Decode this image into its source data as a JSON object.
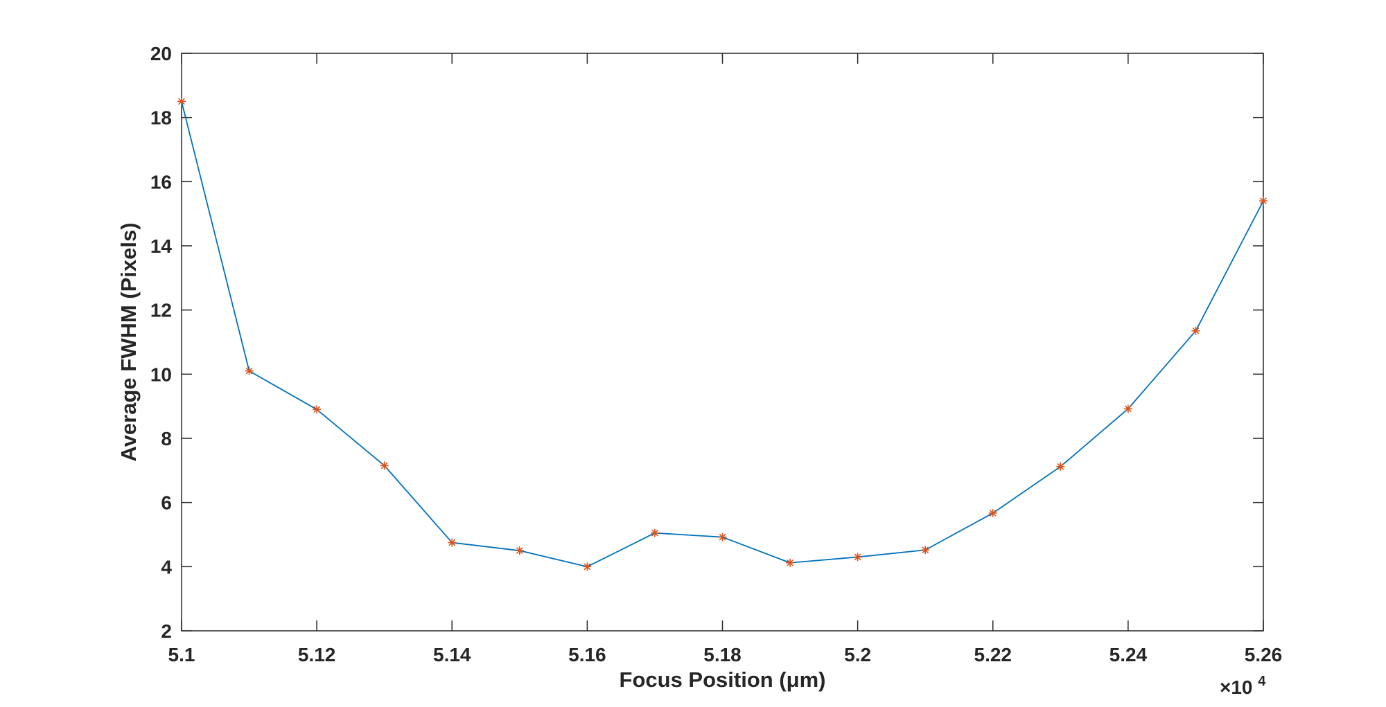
{
  "chart_data": {
    "type": "line",
    "title": "",
    "xlabel": "Focus Position (μm)",
    "ylabel": "Average FWHM (Pixels)",
    "x_multiplier_label": "×10",
    "x_multiplier_exponent": "4",
    "xlim": [
      5.1,
      5.26
    ],
    "ylim": [
      2,
      20
    ],
    "xticks": [
      "5.1",
      "5.12",
      "5.14",
      "5.16",
      "5.18",
      "5.2",
      "5.22",
      "5.24",
      "5.26"
    ],
    "yticks": [
      "2",
      "4",
      "6",
      "8",
      "10",
      "12",
      "14",
      "16",
      "18",
      "20"
    ],
    "grid": false,
    "box": true,
    "series": [
      {
        "line_color": "#0072BD",
        "marker_color": "#D95319",
        "marker": "asterisk",
        "x": [
          5.1,
          5.11,
          5.12,
          5.13,
          5.14,
          5.15,
          5.16,
          5.17,
          5.18,
          5.19,
          5.2,
          5.21,
          5.22,
          5.23,
          5.24,
          5.25,
          5.26
        ],
        "y": [
          18.5,
          10.1,
          8.9,
          7.15,
          4.75,
          4.5,
          4.0,
          5.05,
          4.92,
          4.12,
          4.3,
          4.52,
          5.67,
          7.12,
          8.92,
          11.35,
          15.4
        ]
      }
    ]
  }
}
